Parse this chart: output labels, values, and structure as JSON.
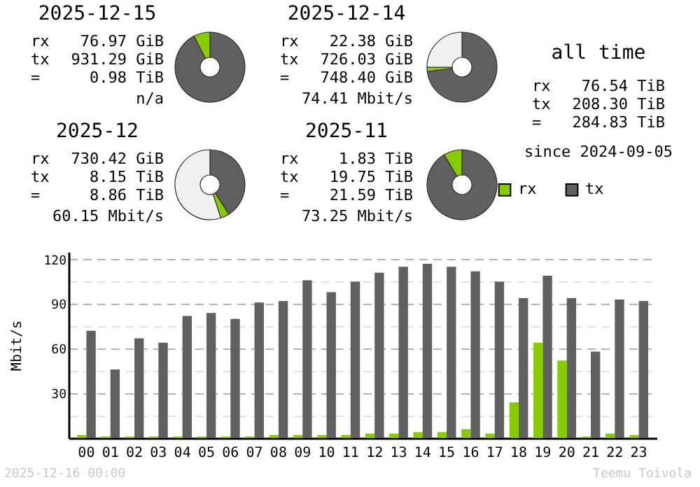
{
  "chart_data": [
    {
      "type": "donut",
      "title": "2025-12-15",
      "annotations": [
        "rx 76.97 GiB",
        "tx 931.29 GiB",
        "= 0.98 TiB",
        "n/a"
      ],
      "categories": [
        null,
        null
      ],
      "values": [
        92.4,
        7.6
      ],
      "colors": [
        "#606060",
        "#88cc00"
      ],
      "legend": false
    },
    {
      "type": "donut",
      "title": "2025-12-14",
      "annotations": [
        "rx 22.38 GiB",
        "tx 726.03 GiB",
        "= 748.40 GiB",
        "74.41 Mbit/s"
      ],
      "categories": [
        null,
        null,
        null
      ],
      "values": [
        73,
        2,
        25
      ],
      "colors": [
        "#606060",
        "#88cc00",
        "#f0f0f0"
      ],
      "legend": false
    },
    {
      "type": "other",
      "title": "all time",
      "annotations": [
        "rx 76.54 TiB",
        "tx 208.30 TiB",
        "= 284.83 TiB",
        "since 2024-09-05"
      ]
    },
    {
      "type": "donut",
      "title": "2025-12",
      "annotations": [
        "rx 730.42 GiB",
        "tx 8.15 TiB",
        "= 8.86 TiB",
        "60.15 Mbit/s"
      ],
      "categories": [
        null,
        null,
        null
      ],
      "values": [
        41,
        4,
        55
      ],
      "colors": [
        "#606060",
        "#88cc00",
        "#f0f0f0"
      ],
      "legend": false
    },
    {
      "type": "donut",
      "title": "2025-11",
      "annotations": [
        "rx 1.83 TiB",
        "tx 19.75 TiB",
        "= 21.59 TiB",
        "73.25 Mbit/s"
      ],
      "categories": [
        null,
        null
      ],
      "values": [
        91.5,
        8.5
      ],
      "colors": [
        "#606060",
        "#88cc00"
      ],
      "legend": false
    },
    {
      "type": "bar",
      "ylabel": "Mbit/s",
      "annotations": [
        "2025-12-16 00:00",
        "Teemu Toivola"
      ],
      "legend": "top right",
      "grid": "y",
      "categories": [
        "00",
        "01",
        "02",
        "03",
        "04",
        "05",
        "06",
        "07",
        "08",
        "09",
        "10",
        "11",
        "12",
        "13",
        "14",
        "15",
        "16",
        "17",
        "18",
        "19",
        "20",
        "21",
        "22",
        "23"
      ],
      "ylim": [
        0,
        125
      ],
      "yticks": [
        {
          "value": 15,
          "label": null
        },
        30,
        {
          "value": 45,
          "label": null
        },
        60,
        {
          "value": 75,
          "label": null
        },
        90,
        {
          "value": 105,
          "label": null
        },
        120
      ],
      "series": [
        {
          "name": "rx",
          "color": "#88cc00",
          "values": [
            2,
            1,
            1,
            1,
            1,
            1,
            1,
            1,
            2,
            2,
            2,
            2,
            3,
            3,
            4,
            4,
            6,
            3,
            24,
            64,
            52,
            1,
            3,
            2
          ]
        },
        {
          "name": "tx",
          "color": "#606060",
          "values": [
            72,
            46,
            67,
            64,
            82,
            84,
            80,
            91,
            92,
            106,
            98,
            105,
            111,
            115,
            117,
            115,
            112,
            105,
            94,
            109,
            94,
            58,
            93,
            92
          ]
        }
      ]
    }
  ]
}
